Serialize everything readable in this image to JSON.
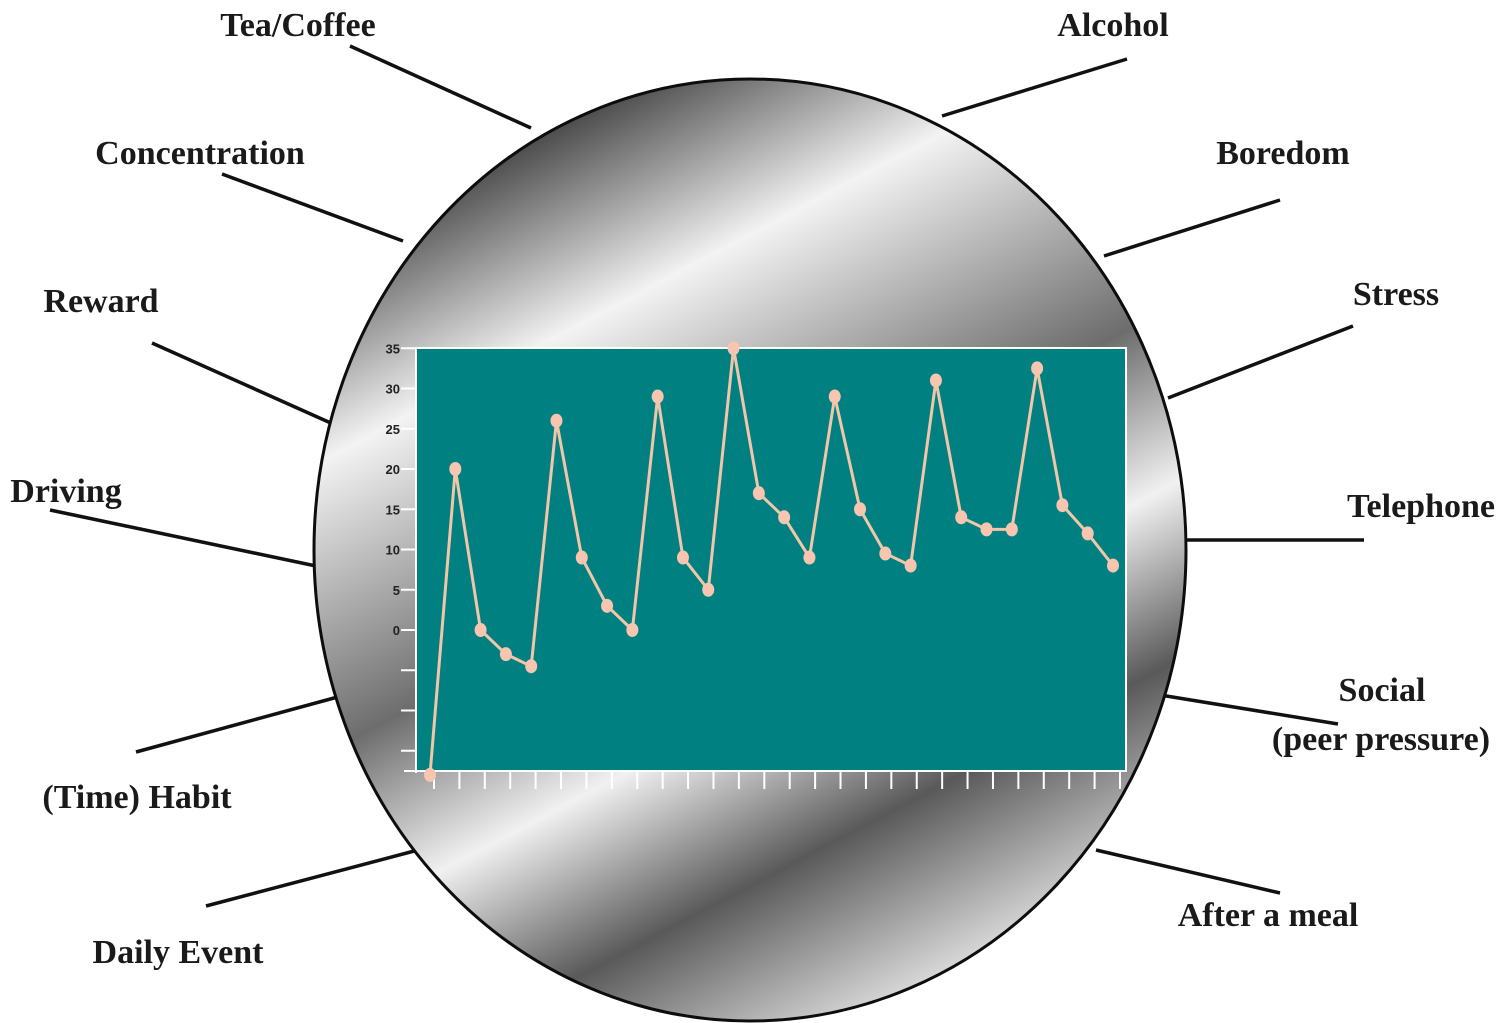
{
  "factors": [
    {
      "id": "tea-coffee",
      "label": "Tea/Coffee"
    },
    {
      "id": "alcohol",
      "label": "Alcohol"
    },
    {
      "id": "concentration",
      "label": "Concentration"
    },
    {
      "id": "boredom",
      "label": "Boredom"
    },
    {
      "id": "reward",
      "label": "Reward"
    },
    {
      "id": "stress",
      "label": "Stress"
    },
    {
      "id": "driving",
      "label": "Driving"
    },
    {
      "id": "telephone",
      "label": "Telephone"
    },
    {
      "id": "social",
      "label": "Social"
    },
    {
      "id": "peer-pressure",
      "label": "(peer pressure)"
    },
    {
      "id": "time-habit",
      "label": "(Time) Habit"
    },
    {
      "id": "after-meal",
      "label": "After a meal"
    },
    {
      "id": "daily-event",
      "label": "Daily Event"
    }
  ],
  "colors": {
    "chart_background": "#008080",
    "line": "#f2c6a8",
    "marker": "#f7c5b0",
    "oval_dark": "#5a5a5a",
    "oval_light": "#f5f5f5"
  },
  "chart_data": {
    "type": "line",
    "title": "",
    "xlabel": "",
    "ylabel": "",
    "ylim": [
      -15,
      35
    ],
    "y_tick_labels": [
      "35",
      "30",
      "25",
      "20",
      "15",
      "10",
      "5",
      "0"
    ],
    "x_tick_count": 28,
    "grid": false,
    "legend": "none",
    "series": [
      {
        "values": [
          -18,
          20,
          0,
          -3,
          -4.5,
          26,
          9,
          3,
          0,
          29,
          9,
          5,
          35,
          17,
          14,
          9,
          29,
          15,
          9.5,
          8,
          31,
          14,
          12.5,
          12.5,
          32.5,
          15.5,
          12,
          8
        ]
      }
    ]
  }
}
